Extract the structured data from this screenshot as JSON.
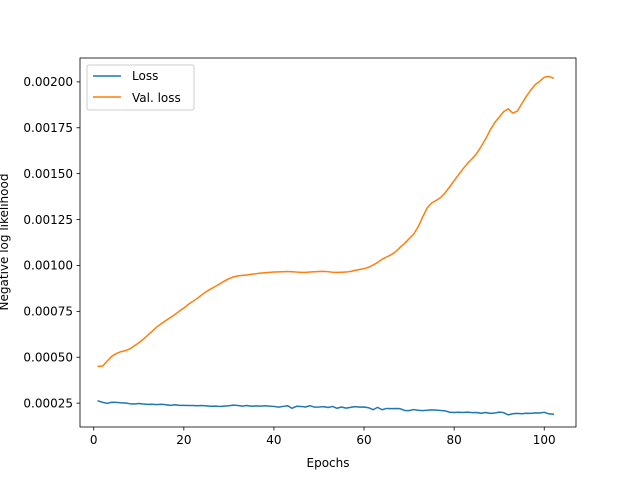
{
  "chart_data": {
    "type": "line",
    "title": "",
    "xlabel": "Epochs",
    "ylabel": "Negative log likelihood",
    "xlim": [
      -3.05,
      107.05
    ],
    "ylim": [
      0.00012,
      0.00213
    ],
    "xticks": [
      0,
      20,
      40,
      60,
      80,
      100
    ],
    "xtick_labels": [
      "0",
      "20",
      "40",
      "60",
      "80",
      "100"
    ],
    "yticks": [
      0.00025,
      0.0005,
      0.00075,
      0.001,
      0.00125,
      0.0015,
      0.00175,
      0.002
    ],
    "ytick_labels": [
      "0.00025",
      "0.00050",
      "0.00075",
      "0.00100",
      "0.00125",
      "0.00150",
      "0.00175",
      "0.00200"
    ],
    "grid": false,
    "legend_position": "upper-left",
    "series": [
      {
        "name": "Loss",
        "color": "#1f77b4",
        "x": [
          1,
          2,
          3,
          4,
          5,
          6,
          7,
          8,
          9,
          10,
          11,
          12,
          13,
          14,
          15,
          16,
          17,
          18,
          19,
          20,
          21,
          22,
          23,
          24,
          25,
          26,
          27,
          28,
          29,
          30,
          31,
          32,
          33,
          34,
          35,
          36,
          37,
          38,
          39,
          40,
          41,
          42,
          43,
          44,
          45,
          46,
          47,
          48,
          49,
          50,
          51,
          52,
          53,
          54,
          55,
          56,
          57,
          58,
          59,
          60,
          61,
          62,
          63,
          64,
          65,
          66,
          67,
          68,
          69,
          70,
          71,
          72,
          73,
          74,
          75,
          76,
          77,
          78,
          79,
          80,
          81,
          82,
          83,
          84,
          85,
          86,
          87,
          88,
          89,
          90,
          91,
          92,
          93,
          94,
          95,
          96,
          97,
          98,
          99,
          100,
          101,
          102
        ],
        "y": [
          0.000262,
          0.000254,
          0.000249,
          0.000255,
          0.000254,
          0.000252,
          0.000251,
          0.000247,
          0.000245,
          0.000248,
          0.000245,
          0.000243,
          0.000244,
          0.000242,
          0.000244,
          0.000241,
          0.000238,
          0.000241,
          0.000238,
          0.000238,
          0.000237,
          0.000237,
          0.000236,
          0.000237,
          0.000235,
          0.000233,
          0.000234,
          0.000232,
          0.000234,
          0.000236,
          0.000239,
          0.000237,
          0.000234,
          0.000237,
          0.000233,
          0.000235,
          0.000234,
          0.000236,
          0.000234,
          0.000232,
          0.000228,
          0.000232,
          0.000236,
          0.000222,
          0.000233,
          0.000232,
          0.000229,
          0.000236,
          0.000228,
          0.000229,
          0.000231,
          0.000226,
          0.000232,
          0.000222,
          0.000229,
          0.000223,
          0.000227,
          0.000231,
          0.000228,
          0.000229,
          0.000225,
          0.000214,
          0.000227,
          0.000214,
          0.000221,
          0.00022,
          0.000221,
          0.00022,
          0.00021,
          0.000209,
          0.000215,
          0.000211,
          0.000209,
          0.000211,
          0.000213,
          0.000212,
          0.00021,
          0.000208,
          0.0002,
          0.000199,
          0.0002,
          0.000199,
          0.000201,
          0.000198,
          0.000199,
          0.000195,
          0.000199,
          0.000194,
          0.000196,
          0.000201,
          0.000198,
          0.000186,
          0.000192,
          0.000194,
          0.000192,
          0.000195,
          0.000194,
          0.000197,
          0.000196,
          0.0002,
          0.000192,
          0.00019
        ]
      },
      {
        "name": "Val. loss",
        "color": "#ff7f0e",
        "x": [
          1,
          2,
          3,
          4,
          5,
          6,
          7,
          8,
          9,
          10,
          11,
          12,
          13,
          14,
          15,
          16,
          17,
          18,
          19,
          20,
          21,
          22,
          23,
          24,
          25,
          26,
          27,
          28,
          29,
          30,
          31,
          32,
          33,
          34,
          35,
          36,
          37,
          38,
          39,
          40,
          41,
          42,
          43,
          44,
          45,
          46,
          47,
          48,
          49,
          50,
          51,
          52,
          53,
          54,
          55,
          56,
          57,
          58,
          59,
          60,
          61,
          62,
          63,
          64,
          65,
          66,
          67,
          68,
          69,
          70,
          71,
          72,
          73,
          74,
          75,
          76,
          77,
          78,
          79,
          80,
          81,
          82,
          83,
          84,
          85,
          86,
          87,
          88,
          89,
          90,
          91,
          92,
          93,
          94,
          95,
          96,
          97,
          98,
          99,
          100,
          101,
          102
        ],
        "y": [
          0.00045,
          0.000452,
          0.00048,
          0.000505,
          0.00052,
          0.00053,
          0.000536,
          0.000545,
          0.000562,
          0.000578,
          0.000598,
          0.00062,
          0.000642,
          0.000665,
          0.000683,
          0.0007,
          0.000716,
          0.000732,
          0.000751,
          0.000768,
          0.000788,
          0.000804,
          0.000821,
          0.00084,
          0.000858,
          0.000872,
          0.000886,
          0.0009,
          0.000915,
          0.000928,
          0.000937,
          0.000943,
          0.000946,
          0.000948,
          0.000952,
          0.000955,
          0.000958,
          0.00096,
          0.000962,
          0.000964,
          0.000965,
          0.000966,
          0.000967,
          0.000966,
          0.000964,
          0.000962,
          0.000962,
          0.000964,
          0.000966,
          0.000967,
          0.000968,
          0.000966,
          0.000963,
          0.000962,
          0.000963,
          0.000964,
          0.000967,
          0.000973,
          0.000978,
          0.000983,
          0.00099,
          0.001002,
          0.001016,
          0.001034,
          0.001046,
          0.001058,
          0.001075,
          0.001098,
          0.00112,
          0.001145,
          0.00117,
          0.00121,
          0.001263,
          0.001313,
          0.00134,
          0.001354,
          0.00137,
          0.001395,
          0.001428,
          0.001462,
          0.001495,
          0.001527,
          0.001557,
          0.001582,
          0.00161,
          0.001648,
          0.00169,
          0.001738,
          0.001778,
          0.001808,
          0.001838,
          0.001853,
          0.00183,
          0.00184,
          0.00188,
          0.00192,
          0.001955,
          0.001985,
          0.002003,
          0.002025,
          0.00203,
          0.00202
        ]
      }
    ]
  }
}
